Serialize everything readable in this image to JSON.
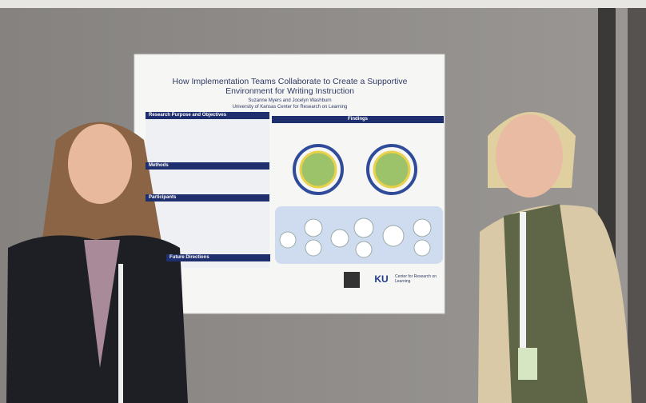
{
  "poster": {
    "title": "How Implementation Teams Collaborate to Create a Supportive Environment for Writing Instruction",
    "authors": "Suzanne Myers and Jocelyn Washburn",
    "affiliation": "University of Kansas Center for Research on Learning",
    "sections": [
      "Research Purpose and Objectives",
      "Methods",
      "Participants",
      "Future Directions"
    ],
    "findings": "Findings",
    "logo": "KU",
    "logo_caption": "Center for Research on Learning"
  }
}
